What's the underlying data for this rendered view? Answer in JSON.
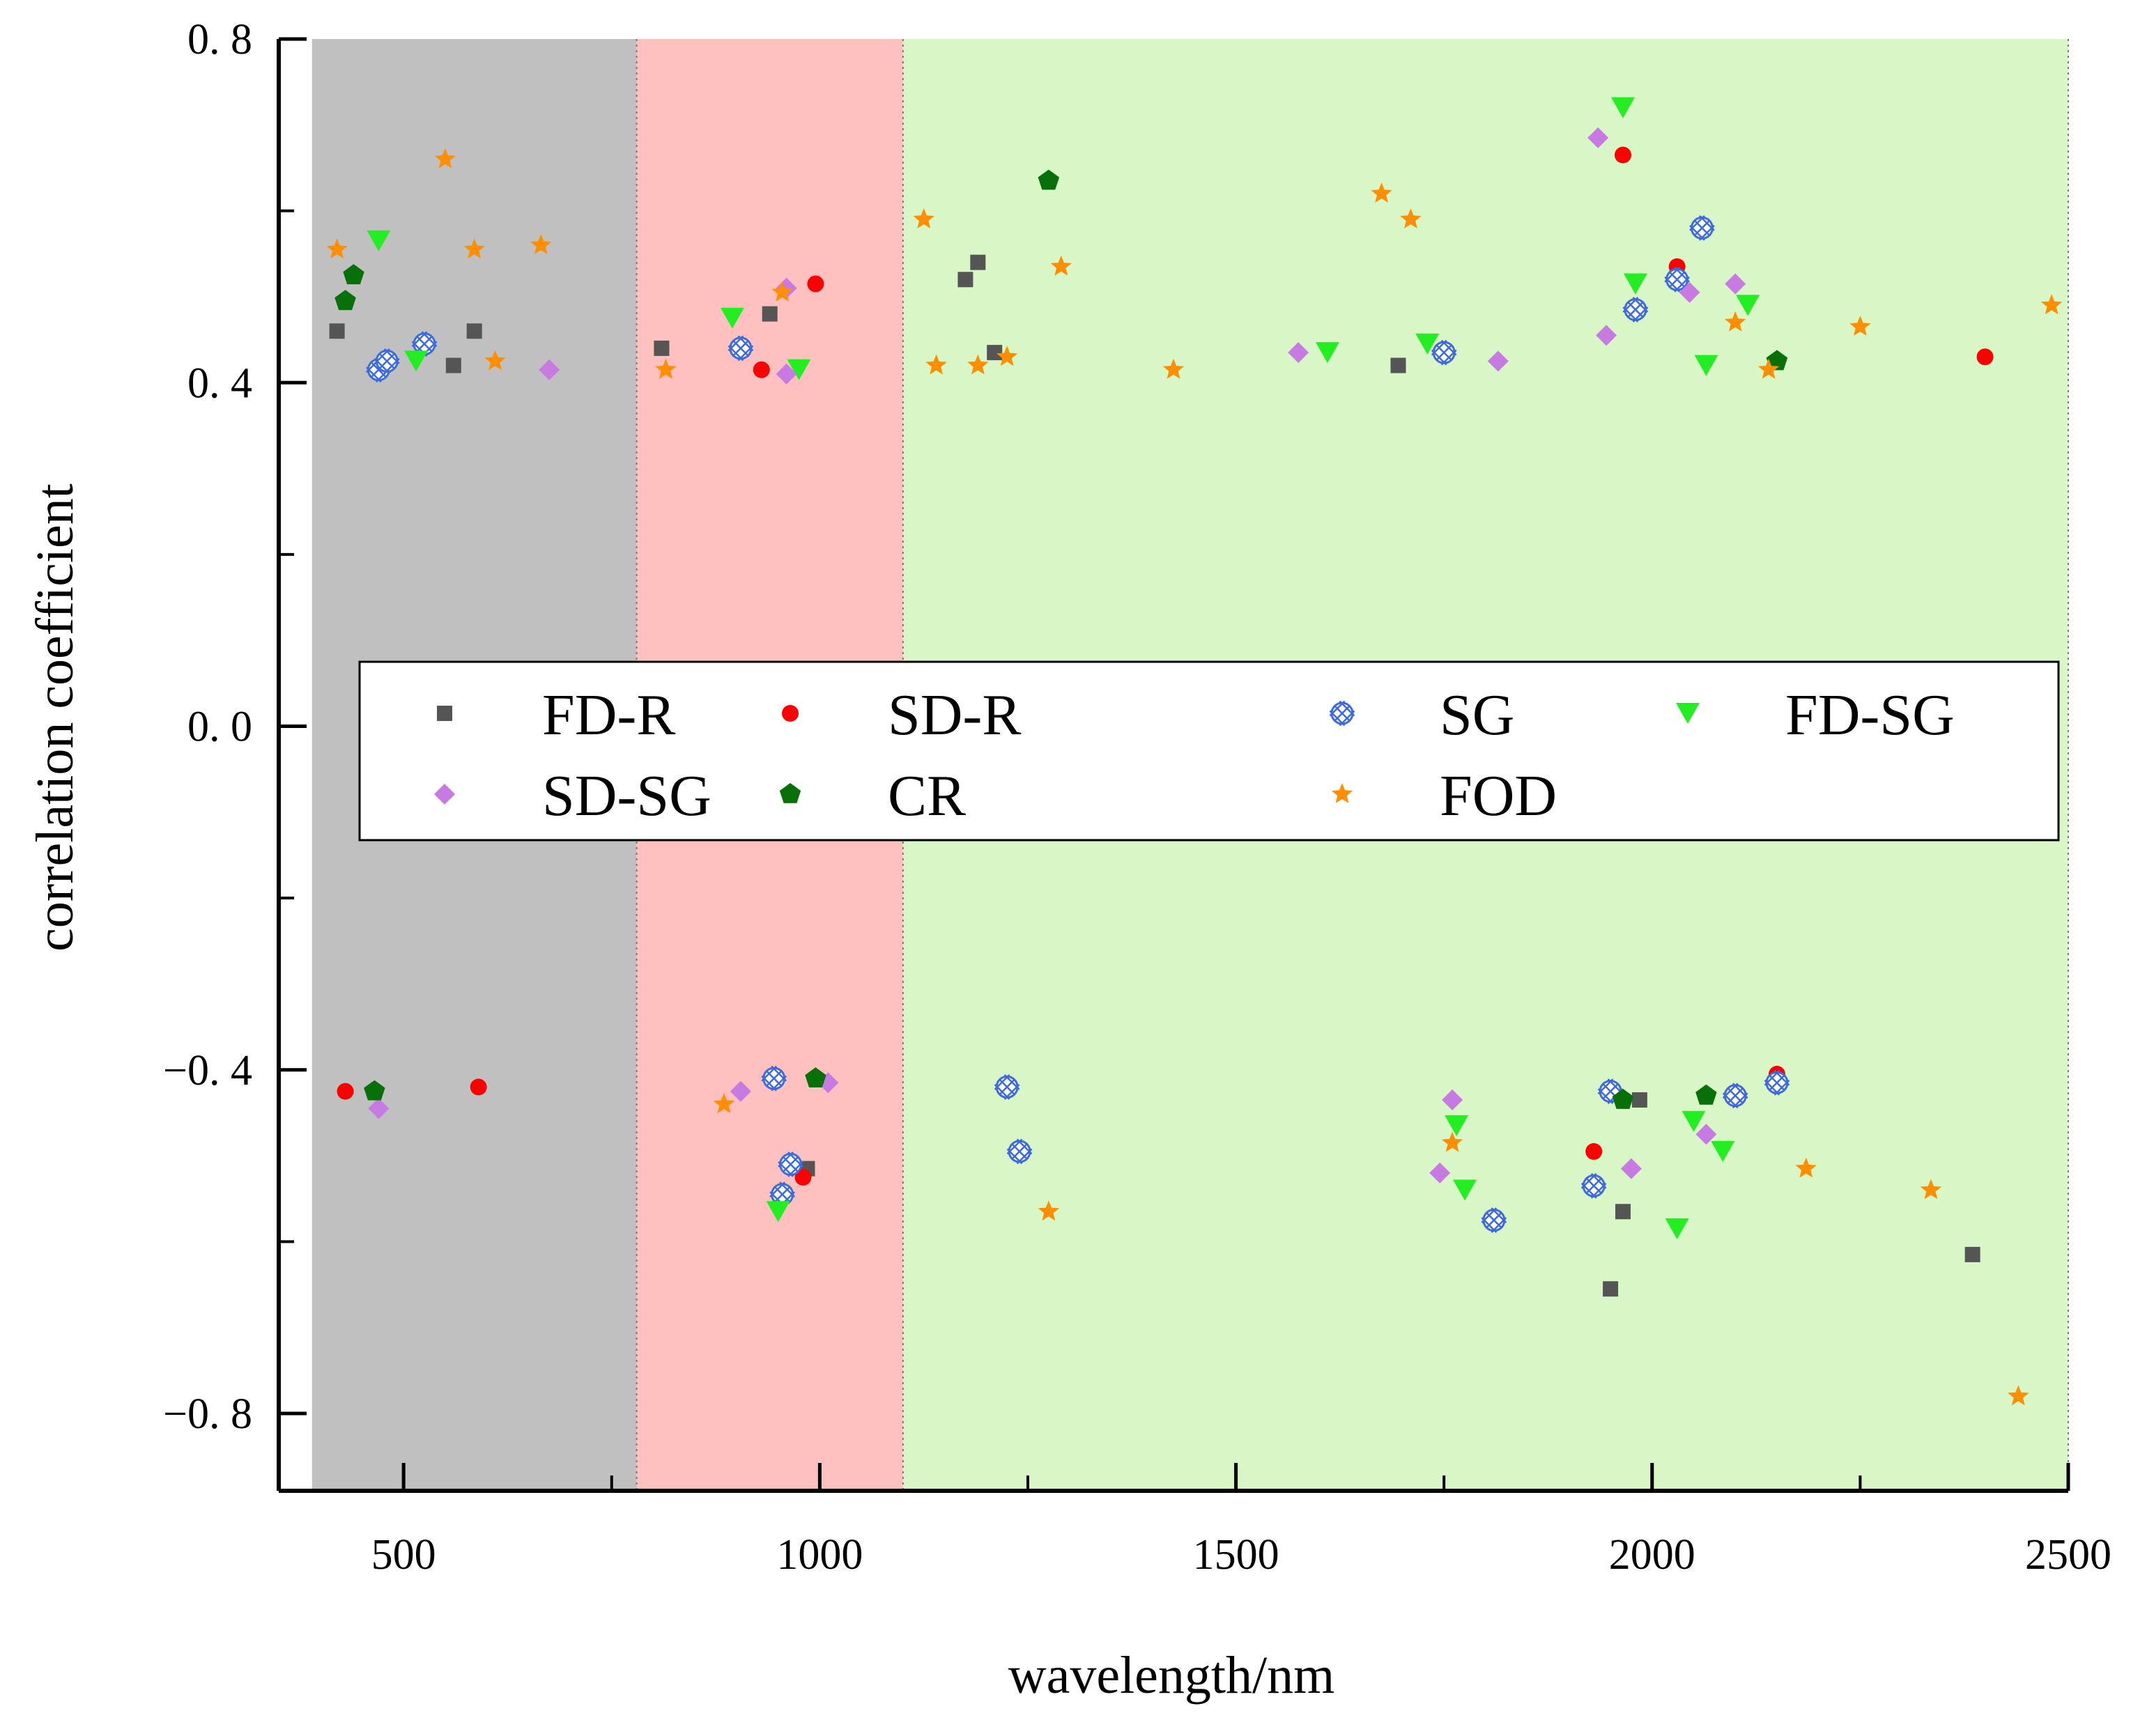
{
  "chart_data": {
    "type": "scatter",
    "xlabel": "wavelength/nm",
    "ylabel": "correlation coefficient",
    "xlim": [
      350,
      2500
    ],
    "ylim": [
      -0.89,
      0.8
    ],
    "x_ticks": [
      {
        "value": 500,
        "label": "500"
      },
      {
        "value": 1000,
        "label": "1000"
      },
      {
        "value": 1500,
        "label": "1500"
      },
      {
        "value": 2000,
        "label": "2000"
      },
      {
        "value": 2500,
        "label": "2500"
      }
    ],
    "x_minor_ticks": [
      750,
      1250,
      1750,
      2250
    ],
    "y_ticks": [
      {
        "value": 0.8,
        "label": "0. 8"
      },
      {
        "value": 0.4,
        "label": "0. 4"
      },
      {
        "value": 0.0,
        "label": "0. 0"
      },
      {
        "value": -0.4,
        "label": "−0. 4"
      },
      {
        "value": -0.8,
        "label": "−0. 8"
      }
    ],
    "y_minor_ticks": [
      0.6,
      0.2,
      -0.2,
      -0.6
    ],
    "regions": [
      {
        "name": "region-visible",
        "x0": 390,
        "x1": 780,
        "color": "#c0c0c0"
      },
      {
        "name": "region-nir",
        "x0": 780,
        "x1": 1100,
        "color": "#ffc0c0"
      },
      {
        "name": "region-swir",
        "x0": 1100,
        "x1": 2500,
        "color": "#d9f7c6"
      }
    ],
    "legend_position": "center",
    "series": [
      {
        "name": "FD-R",
        "marker": "square",
        "color": "#555555",
        "points": [
          [
            420,
            0.46
          ],
          [
            560,
            0.42
          ],
          [
            585,
            0.46
          ],
          [
            810,
            0.44
          ],
          [
            940,
            0.48
          ],
          [
            1175,
            0.52
          ],
          [
            1190,
            0.54
          ],
          [
            1210,
            0.435
          ],
          [
            1695,
            0.42
          ],
          [
            985,
            -0.515
          ],
          [
            1950,
            -0.655
          ],
          [
            1965,
            -0.565
          ],
          [
            1985,
            -0.435
          ],
          [
            2385,
            -0.615
          ]
        ]
      },
      {
        "name": "SD-R",
        "marker": "circle",
        "color": "#ff0000",
        "points": [
          [
            995,
            0.515
          ],
          [
            930,
            0.415
          ],
          [
            1965,
            0.665
          ],
          [
            2030,
            0.535
          ],
          [
            2400,
            0.43
          ],
          [
            430,
            -0.425
          ],
          [
            590,
            -0.42
          ],
          [
            980,
            -0.525
          ],
          [
            1930,
            -0.495
          ],
          [
            2150,
            -0.405
          ]
        ]
      },
      {
        "name": "SG",
        "marker": "crosshatch",
        "color": "#3d6bde",
        "points": [
          [
            470,
            0.415
          ],
          [
            480,
            0.425
          ],
          [
            525,
            0.445
          ],
          [
            905,
            0.44
          ],
          [
            2060,
            0.58
          ],
          [
            2030,
            0.52
          ],
          [
            1980,
            0.485
          ],
          [
            1750,
            0.435
          ],
          [
            945,
            -0.41
          ],
          [
            965,
            -0.51
          ],
          [
            955,
            -0.545
          ],
          [
            1225,
            -0.42
          ],
          [
            1240,
            -0.495
          ],
          [
            1810,
            -0.575
          ],
          [
            1930,
            -0.535
          ],
          [
            1950,
            -0.425
          ],
          [
            2100,
            -0.43
          ],
          [
            2150,
            -0.415
          ]
        ]
      },
      {
        "name": "FD-SG",
        "marker": "triangle-down",
        "color": "#22ee22",
        "points": [
          [
            470,
            0.565
          ],
          [
            515,
            0.425
          ],
          [
            895,
            0.475
          ],
          [
            975,
            0.415
          ],
          [
            1965,
            0.72
          ],
          [
            1980,
            0.515
          ],
          [
            2065,
            0.42
          ],
          [
            2115,
            0.49
          ],
          [
            1610,
            0.435
          ],
          [
            1730,
            0.445
          ],
          [
            950,
            -0.565
          ],
          [
            1765,
            -0.465
          ],
          [
            1775,
            -0.54
          ],
          [
            2030,
            -0.585
          ],
          [
            2050,
            -0.46
          ],
          [
            2085,
            -0.495
          ]
        ]
      },
      {
        "name": "SD-SG",
        "marker": "diamond",
        "color": "#c77be2",
        "points": [
          [
            675,
            0.415
          ],
          [
            960,
            0.51
          ],
          [
            960,
            0.41
          ],
          [
            1575,
            0.435
          ],
          [
            1815,
            0.425
          ],
          [
            1935,
            0.685
          ],
          [
            1945,
            0.455
          ],
          [
            2045,
            0.505
          ],
          [
            2100,
            0.515
          ],
          [
            470,
            -0.445
          ],
          [
            905,
            -0.425
          ],
          [
            1010,
            -0.415
          ],
          [
            1745,
            -0.52
          ],
          [
            1760,
            -0.435
          ],
          [
            1975,
            -0.515
          ],
          [
            2065,
            -0.475
          ]
        ]
      },
      {
        "name": "CR",
        "marker": "pentagon",
        "color": "#087008",
        "points": [
          [
            430,
            0.495
          ],
          [
            440,
            0.525
          ],
          [
            1275,
            0.635
          ],
          [
            2150,
            0.425
          ],
          [
            465,
            -0.425
          ],
          [
            995,
            -0.41
          ],
          [
            1965,
            -0.435
          ],
          [
            2065,
            -0.43
          ]
        ]
      },
      {
        "name": "FOD",
        "marker": "star",
        "color": "#ff8f00",
        "points": [
          [
            420,
            0.555
          ],
          [
            550,
            0.66
          ],
          [
            585,
            0.555
          ],
          [
            610,
            0.425
          ],
          [
            665,
            0.56
          ],
          [
            815,
            0.415
          ],
          [
            955,
            0.505
          ],
          [
            1125,
            0.59
          ],
          [
            1140,
            0.42
          ],
          [
            1190,
            0.42
          ],
          [
            1225,
            0.43
          ],
          [
            1290,
            0.535
          ],
          [
            1425,
            0.415
          ],
          [
            1675,
            0.62
          ],
          [
            1710,
            0.59
          ],
          [
            2100,
            0.47
          ],
          [
            2140,
            0.415
          ],
          [
            2250,
            0.465
          ],
          [
            2480,
            0.49
          ],
          [
            885,
            -0.44
          ],
          [
            1275,
            -0.565
          ],
          [
            1760,
            -0.485
          ],
          [
            2185,
            -0.515
          ],
          [
            2335,
            -0.54
          ],
          [
            2440,
            -0.78
          ]
        ]
      }
    ]
  }
}
